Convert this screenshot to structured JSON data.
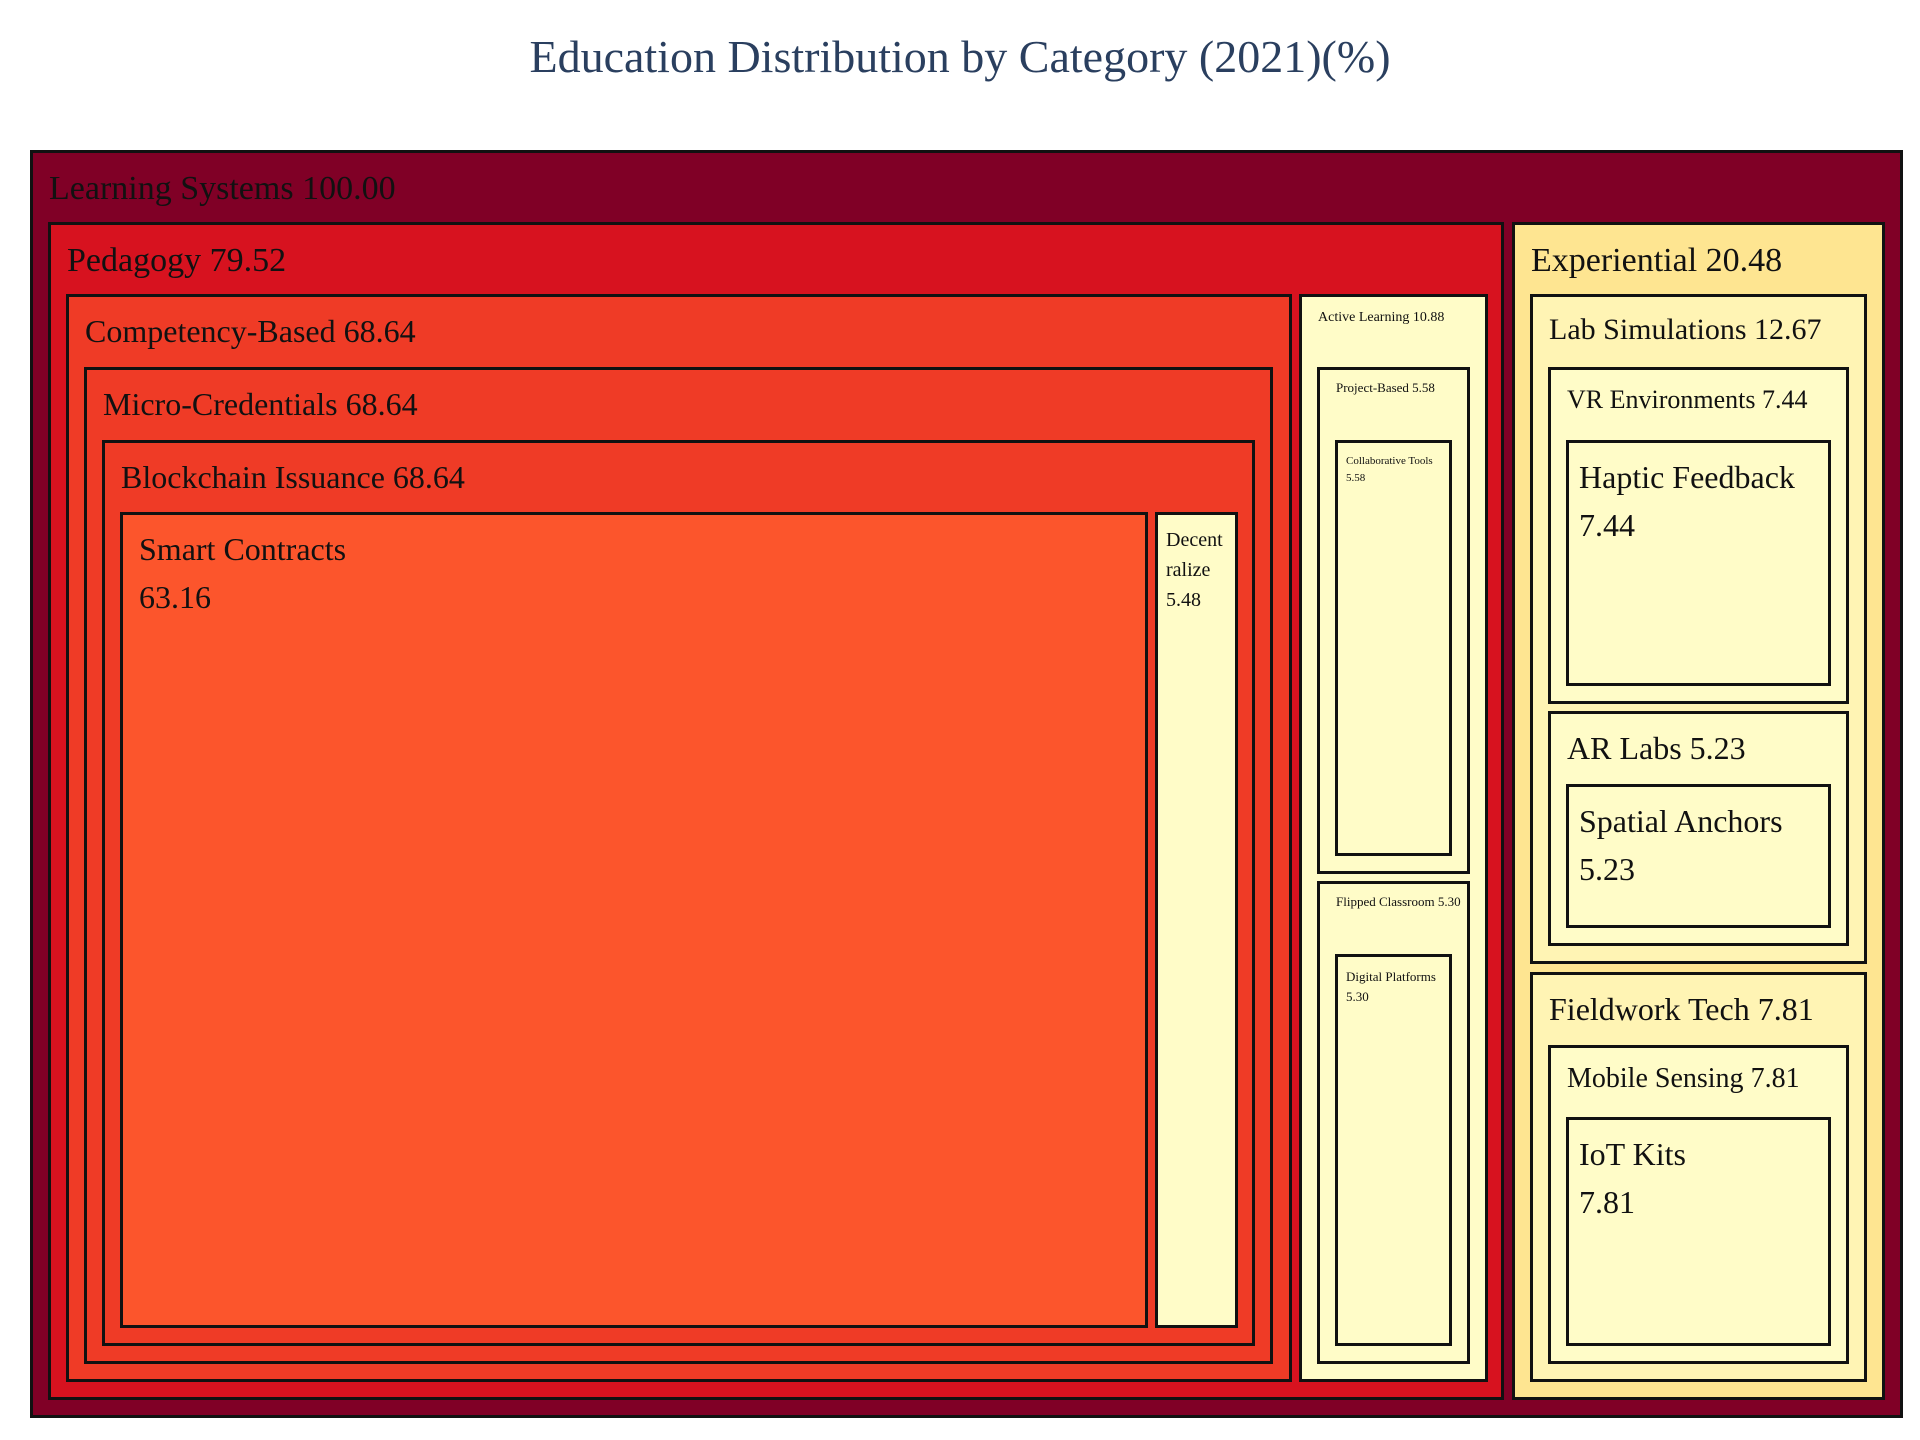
{
  "chart_data": {
    "type": "treemap",
    "title": "Education Distribution by Category (2021)(%)",
    "root": {
      "id": "learning-systems",
      "label": "Learning Systems",
      "value": 100.0,
      "color": "#800026",
      "children": [
        {
          "id": "pedagogy",
          "label": "Pedagogy",
          "value": 79.52,
          "color": "#d7121f",
          "children": [
            {
              "id": "competency-based",
              "label": "Competency-Based",
              "value": 68.64,
              "color": "#ef3b26",
              "children": [
                {
                  "id": "micro-credentials",
                  "label": "Micro-Credentials",
                  "value": 68.64,
                  "color": "#ef3b26",
                  "children": [
                    {
                      "id": "blockchain-issuance",
                      "label": "Blockchain Issuance",
                      "value": 68.64,
                      "color": "#ef3b26",
                      "children": [
                        {
                          "id": "smart-contracts",
                          "label": "Smart Contracts",
                          "value": 63.16,
                          "color": "#fc552c"
                        },
                        {
                          "id": "decentralize",
                          "label": "Decentralize",
                          "value": 5.48,
                          "color": "#fffcc8"
                        }
                      ]
                    }
                  ]
                }
              ]
            },
            {
              "id": "active-learning",
              "label": "Active Learning",
              "value": 10.88,
              "color": "#fffcc8",
              "children": [
                {
                  "id": "project-based",
                  "label": "Project-Based",
                  "value": 5.58,
                  "color": "#fffcc8",
                  "children": [
                    {
                      "id": "collaborative-tools",
                      "label": "Collaborative Tools",
                      "value": 5.58,
                      "color": "#fffcc8"
                    }
                  ]
                },
                {
                  "id": "flipped-classroom",
                  "label": "Flipped Classroom",
                  "value": 5.3,
                  "color": "#fffcc8",
                  "children": [
                    {
                      "id": "digital-platforms",
                      "label": "Digital Platforms",
                      "value": 5.3,
                      "color": "#fffcc8"
                    }
                  ]
                }
              ]
            }
          ]
        },
        {
          "id": "experiential",
          "label": "Experiential",
          "value": 20.48,
          "color": "#fee591",
          "children": [
            {
              "id": "lab-simulations",
              "label": "Lab Simulations",
              "value": 12.67,
              "color": "#fff4b4",
              "children": [
                {
                  "id": "vr-environments",
                  "label": "VR Environments",
                  "value": 7.44,
                  "color": "#fffcc8",
                  "children": [
                    {
                      "id": "haptic-feedback",
                      "label": "Haptic Feedback",
                      "value": 7.44,
                      "color": "#fffcc8"
                    }
                  ]
                },
                {
                  "id": "ar-labs",
                  "label": "AR Labs",
                  "value": 5.23,
                  "color": "#fffcc8",
                  "children": [
                    {
                      "id": "spatial-anchors",
                      "label": "Spatial Anchors",
                      "value": 5.23,
                      "color": "#fffcc8"
                    }
                  ]
                }
              ]
            },
            {
              "id": "fieldwork-tech",
              "label": "Fieldwork Tech",
              "value": 7.81,
              "color": "#fff4b4",
              "children": [
                {
                  "id": "mobile-sensing",
                  "label": "Mobile Sensing",
                  "value": 7.81,
                  "color": "#fffcc8",
                  "children": [
                    {
                      "id": "iot-kits",
                      "label": "IoT Kits",
                      "value": 7.81,
                      "color": "#fffcc8"
                    }
                  ]
                }
              ]
            }
          ]
        }
      ]
    }
  }
}
